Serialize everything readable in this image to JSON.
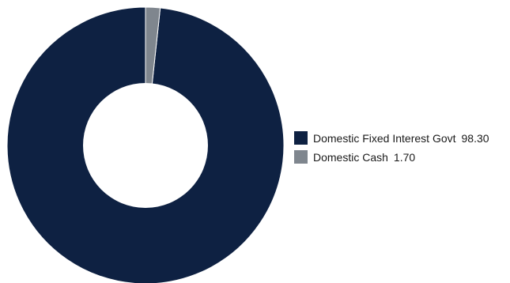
{
  "chart_data": {
    "type": "pie",
    "title": "",
    "legend_placement": "right",
    "slices": [
      {
        "label": "Domestic Fixed Interest Govt",
        "value": 98.3,
        "value_label": "98.30",
        "color": "#0e2142"
      },
      {
        "label": "Domestic Cash",
        "value": 1.7,
        "value_label": "1.70",
        "color": "#7f868e"
      }
    ]
  }
}
